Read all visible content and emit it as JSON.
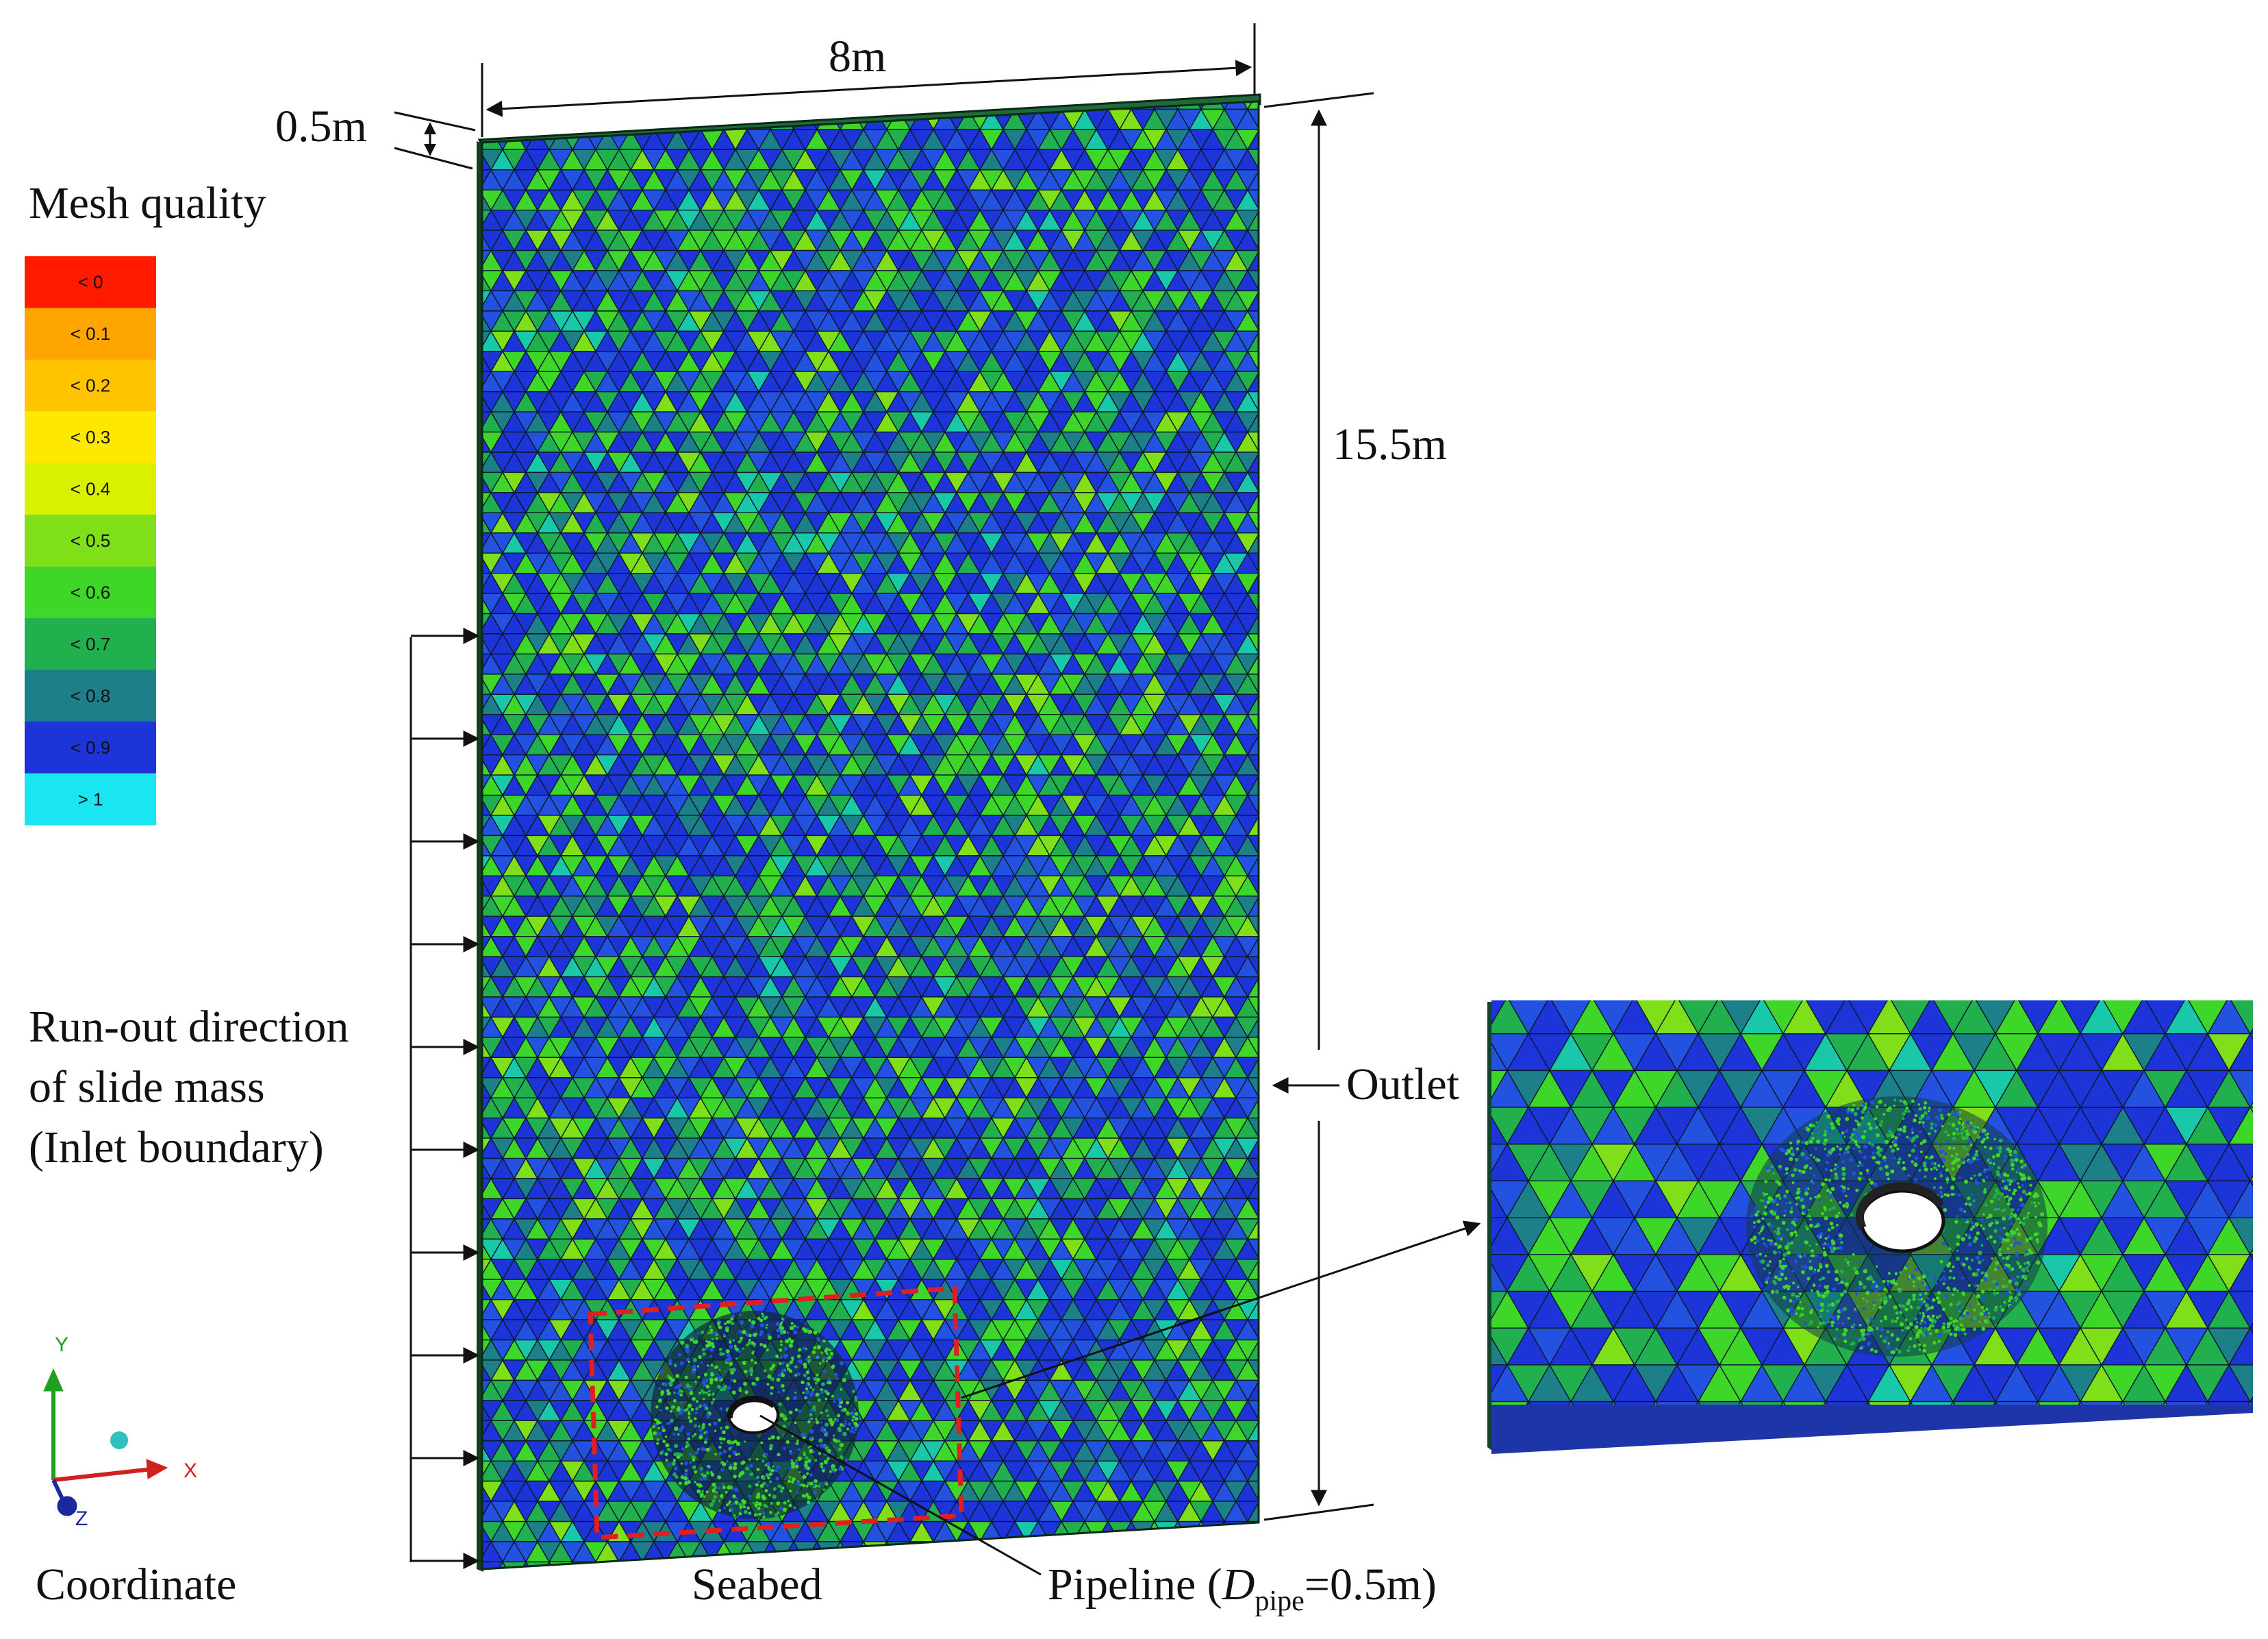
{
  "legend": {
    "title": "Mesh quality",
    "items": [
      {
        "label": "< 0",
        "color": "#ff1a00"
      },
      {
        "label": "< 0.1",
        "color": "#ffa500"
      },
      {
        "label": "< 0.2",
        "color": "#ffc400"
      },
      {
        "label": "< 0.3",
        "color": "#ffe800"
      },
      {
        "label": "< 0.4",
        "color": "#d9f000"
      },
      {
        "label": "< 0.5",
        "color": "#7fe01a"
      },
      {
        "label": "< 0.6",
        "color": "#3fd62a"
      },
      {
        "label": "< 0.7",
        "color": "#22b04e"
      },
      {
        "label": "< 0.8",
        "color": "#1d7f88"
      },
      {
        "label": "< 0.9",
        "color": "#1d35d8"
      },
      {
        "label": "> 1",
        "color": "#19e6f0"
      }
    ]
  },
  "dimensions": {
    "width": "8m",
    "thickness": "0.5m",
    "height": "15.5m"
  },
  "labels": {
    "inlet": [
      "Run-out direction",
      "of slide mass",
      "(Inlet boundary)"
    ],
    "outlet": "Outlet",
    "seabed": "Seabed",
    "pipeline_prefix": "Pipeline (",
    "pipeline_D": "D",
    "pipeline_sub": "pipe",
    "pipeline_suffix": "=0.5m)",
    "coordinate": "Coordinate"
  },
  "axes": {
    "x": "X",
    "y": "Y",
    "z": "Z",
    "colors": {
      "x": "#d02020",
      "y": "#20a020",
      "z": "#1a2a9a",
      "origin": "#30c0c0"
    }
  },
  "mesh_colors": [
    "#1d35d8",
    "#2452e0",
    "#1d7f88",
    "#22b04e",
    "#3fd62a",
    "#7fe01a",
    "#19c8a8"
  ],
  "highlight_color": "#e02020"
}
